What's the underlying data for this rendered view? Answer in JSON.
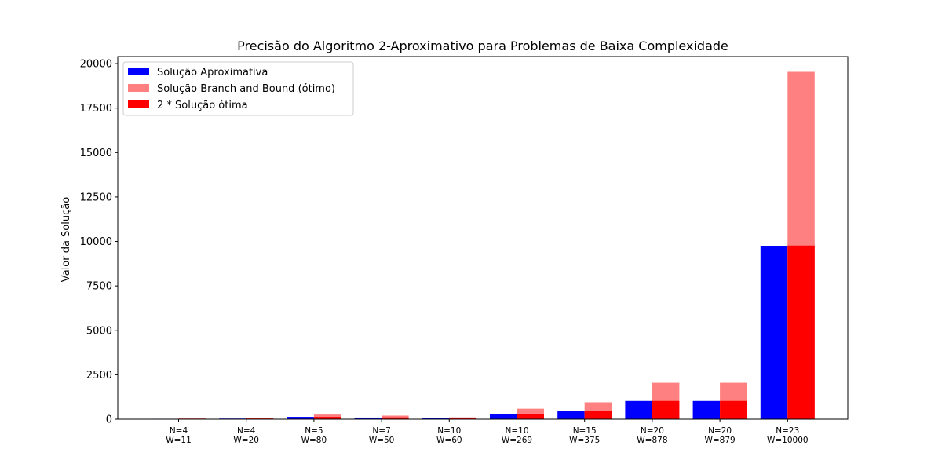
{
  "chart_data": {
    "type": "bar",
    "title": "Precisão do Algoritmo 2-Aproximativo para Problemas de Baixa Complexidade",
    "xlabel": "",
    "ylabel": "Valor da Solução",
    "ylim": [
      0,
      20400
    ],
    "yticks": [
      0,
      2500,
      5000,
      7500,
      10000,
      12500,
      15000,
      17500,
      20000
    ],
    "legend_position": "top-left",
    "categories": [
      [
        "N=4",
        "W=11"
      ],
      [
        "N=4",
        "W=20"
      ],
      [
        "N=5",
        "W=80"
      ],
      [
        "N=7",
        "W=50"
      ],
      [
        "N=10",
        "W=60"
      ],
      [
        "N=10",
        "W=269"
      ],
      [
        "N=15",
        "W=375"
      ],
      [
        "N=20",
        "W=878"
      ],
      [
        "N=20",
        "W=879"
      ],
      [
        "N=23",
        "W=10000"
      ]
    ],
    "series": [
      {
        "name": "Solução Aproximativa",
        "color": "#0000ff",
        "position": "left",
        "values": [
          23,
          35,
          130,
          90,
          51,
          295,
          475,
          1025,
          1025,
          9755
        ]
      },
      {
        "name": "Solução Branch and Bound (ótimo)",
        "color": "#ff8080",
        "position": "right",
        "values": [
          46,
          76,
          260,
          200,
          102,
          590,
          950,
          2050,
          2050,
          19540
        ]
      },
      {
        "name": "2 * Solução ótima",
        "color": "#ff0000",
        "position": "right",
        "values": [
          23,
          38,
          130,
          100,
          51,
          295,
          475,
          1025,
          1025,
          9770
        ]
      }
    ]
  }
}
